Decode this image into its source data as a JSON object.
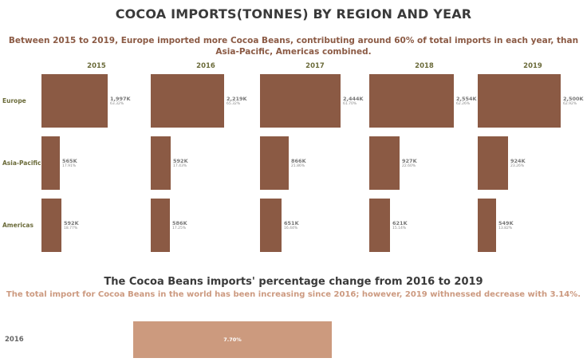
{
  "title": "COCOA IMPORTS(TONNES) BY REGION AND YEAR",
  "subtitle": "Between 2015 to 2019, Europe imported more Cocoa Beans, contributing around 60% of total imports in each year, than Asia-Pacific, Americas combined.",
  "colors": {
    "bar": "#8b5a44",
    "change_bar": "#cc9a7e"
  },
  "chart_data": [
    {
      "type": "bar",
      "orientation": "horizontal",
      "years": [
        "2015",
        "2016",
        "2017",
        "2018",
        "2019"
      ],
      "regions": [
        "Europe",
        "Asia-Pacific",
        "Americas"
      ],
      "max_value": 2554,
      "series": [
        {
          "name": "2015",
          "values": [
            1997,
            565,
            592
          ],
          "value_labels": [
            "1,997K",
            "565K",
            "592K"
          ],
          "pct_labels": [
            "63.32%",
            "17.91%",
            "18.77%"
          ]
        },
        {
          "name": "2016",
          "values": [
            2219,
            592,
            586
          ],
          "value_labels": [
            "2,219K",
            "592K",
            "586K"
          ],
          "pct_labels": [
            "65.32%",
            "17.43%",
            "17.25%"
          ]
        },
        {
          "name": "2017",
          "values": [
            2444,
            866,
            651
          ],
          "value_labels": [
            "2,444K",
            "866K",
            "651K"
          ],
          "pct_labels": [
            "61.70%",
            "21.86%",
            "16.44%"
          ]
        },
        {
          "name": "2018",
          "values": [
            2554,
            927,
            621
          ],
          "value_labels": [
            "2,554K",
            "927K",
            "621K"
          ],
          "pct_labels": [
            "62.26%",
            "22.60%",
            "15.14%"
          ]
        },
        {
          "name": "2019",
          "values": [
            2500,
            924,
            549
          ],
          "value_labels": [
            "2,500K",
            "924K",
            "549K"
          ],
          "pct_labels": [
            "62.92%",
            "23.26%",
            "13.82%"
          ]
        }
      ]
    },
    {
      "type": "bar",
      "orientation": "horizontal",
      "title": "The Cocoa Beans imports' percentage change from 2016 to 2019",
      "subtitle": "The total import for Cocoa Beans in the world has been increasing since 2016; however, 2019 withnessed decrease with 3.14%.",
      "categories": [
        "2016"
      ],
      "values": [
        7.7
      ],
      "value_labels": [
        "7.70%"
      ]
    }
  ]
}
